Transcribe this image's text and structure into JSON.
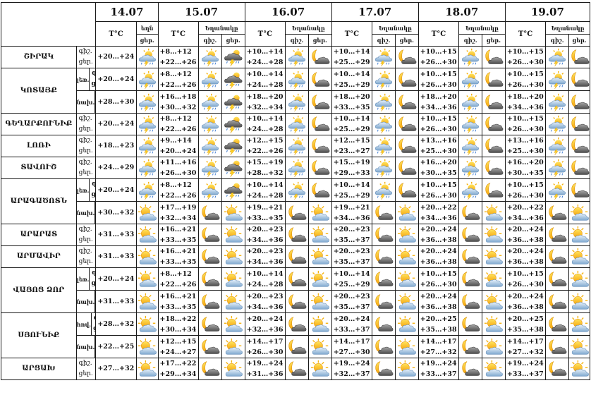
{
  "dates": [
    "14.07",
    "15.07",
    "16.07",
    "17.07",
    "18.07",
    "19.07"
  ],
  "header": {
    "temp": "T°C",
    "weather": "Եղանակը",
    "weather_short": "եղն",
    "night": "գիշ.",
    "day": "ցեր.",
    "day_first": "ցեր."
  },
  "regions": [
    {
      "name": "ՇԻՐԱԿ",
      "sub": "",
      "first": true,
      "lbl": [
        "գիշ.",
        "ցեր."
      ],
      "t": [
        "+20…+24",
        "+8…+12\n+22…+26",
        "+10…+14\n+24…+28",
        "+10…+14\n+25…+29",
        "+10…+15\n+26…+30",
        "+10…+15\n+26…+30"
      ],
      "ic": [
        "sun-storm-cloud",
        "sun-storm-cloud",
        "storm-cloud",
        "sun-storm-cloud",
        "moon-cloud",
        "sun-storm-cloud",
        "moon-cloud",
        "sun-storm-cloud",
        "moon-cloud",
        "sun-storm-cloud",
        "moon-cloud",
        "sun-storm-cloud"
      ]
    },
    {
      "name": "ԿՈՏԱՅՔ",
      "sub": "լեռ.",
      "first": true,
      "lbl": [
        "գիշ.",
        "ցեր."
      ],
      "t": [
        "+20…+24",
        "+8…+12\n+22…+26",
        "+10…+14\n+24…+28",
        "+10…+14\n+25…+29",
        "+10…+15\n+26…+30",
        "+10…+15\n+26…+30"
      ],
      "ic": [
        "sun-storm-cloud",
        "sun-storm-cloud",
        "storm-cloud",
        "sun-storm-cloud",
        "moon-cloud",
        "sun-storm-cloud",
        "moon-cloud",
        "sun-storm-cloud",
        "moon-cloud",
        "sun-storm-cloud",
        "moon-cloud",
        "sun-storm-cloud"
      ]
    },
    {
      "name": "",
      "sub": "նախ.",
      "first": true,
      "lbl": [
        "գիշ.",
        "ցեր."
      ],
      "t": [
        "+28…+30",
        "+16…+18\n+30…+32",
        "+18…+20\n+32…+34",
        "+18…+20\n+33…+35",
        "+18…+20\n+34…+36",
        "+18…+20\n+34…+36"
      ],
      "ic": [
        "sun-storm-cloud",
        "sun-storm-cloud",
        "storm-cloud",
        "sun-storm-cloud",
        "moon-cloud",
        "sun-storm-cloud",
        "moon-cloud",
        "sun-storm-cloud",
        "moon-cloud",
        "sun-storm-cloud",
        "moon-cloud",
        "sun-storm-cloud"
      ]
    },
    {
      "name": "ԳԵՂԱՐՔՈՒՆԻՔ",
      "sub": "",
      "first": true,
      "lbl": [
        "գիշ.",
        "ցեր."
      ],
      "t": [
        "+20…+24",
        "+8…+12\n+22…+26",
        "+10…+14\n+24…+28",
        "+10…+14\n+25…+29",
        "+10…+15\n+26…+30",
        "+10…+15\n+26…+30"
      ],
      "ic": [
        "sun-storm-cloud",
        "sun-storm-cloud",
        "storm-cloud",
        "sun-storm-cloud",
        "moon-cloud",
        "sun-storm-cloud",
        "moon-cloud",
        "sun-storm-cloud",
        "moon-cloud",
        "sun-storm-cloud",
        "moon-cloud",
        "sun-storm-cloud"
      ]
    },
    {
      "name": "ԼՈՌԻ",
      "sub": "",
      "first": true,
      "lbl": [
        "գիշ.",
        "ցեր."
      ],
      "t": [
        "+18…+23",
        "+9…+14\n+20…+24",
        "+12…+15\n+22…+26",
        "+12…+15\n+23…+27",
        "+13…+16\n+25…+30",
        "+13…+16\n+25…+30"
      ],
      "ic": [
        "sun-storm-cloud",
        "sun-storm-cloud",
        "storm-cloud",
        "sun-storm-cloud",
        "moon-cloud",
        "sun-storm-cloud",
        "moon-cloud",
        "sun-storm-cloud",
        "moon-cloud",
        "sun-storm-cloud",
        "moon-cloud",
        "sun-storm-cloud"
      ]
    },
    {
      "name": "ՏԱՎՈՒՇ",
      "sub": "",
      "first": true,
      "lbl": [
        "գիշ.",
        "ցեր."
      ],
      "t": [
        "+24…+29",
        "+11…+16\n+26…+30",
        "+15…+19\n+28…+32",
        "+15…+19\n+29…+33",
        "+16…+20\n+30…+35",
        "+16…+20\n+30…+35"
      ],
      "ic": [
        "sun-storm-cloud",
        "sun-storm-cloud",
        "storm-cloud",
        "sun-storm-cloud",
        "moon-cloud",
        "sun-storm-cloud",
        "moon-cloud",
        "sun-storm-cloud",
        "moon-cloud",
        "sun-storm-cloud",
        "moon-cloud",
        "sun-storm-cloud"
      ]
    },
    {
      "name": "ԱՐԱԳԱԾՈՏՆ",
      "sub": "լեռ.",
      "first": true,
      "lbl": [
        "գիշ.",
        "ցեր."
      ],
      "t": [
        "+20…+24",
        "+8…+12\n+22…+26",
        "+10…+14\n+24…+28",
        "+10…+14\n+25…+29",
        "+10…+15\n+26…+30",
        "+10…+15\n+26…+30"
      ],
      "ic": [
        "sun-storm-cloud",
        "sun-storm-cloud",
        "storm-cloud",
        "sun-storm-cloud",
        "moon-cloud",
        "sun-storm-cloud",
        "moon-cloud",
        "sun-storm-cloud",
        "moon-cloud",
        "sun-storm-cloud",
        "moon-cloud",
        "sun-storm-cloud"
      ]
    },
    {
      "name": "",
      "sub": "նախ.",
      "first": false,
      "lbl": [
        "գիշ.",
        "ցեր."
      ],
      "t": [
        "+30…+32",
        "+17…+19\n+32…+34",
        "+19…+21\n+33…+35",
        "+19…+21\n+34…+36",
        "+20…+22\n+34…+36",
        "+20…+22\n+34…+36"
      ],
      "ic": [
        "sun-cloud",
        "moon-cloud",
        "sun-cloud",
        "moon-cloud",
        "sun-cloud",
        "moon-cloud",
        "sun-cloud",
        "moon-cloud",
        "sun-cloud",
        "moon-cloud",
        "sun-cloud"
      ]
    },
    {
      "name": "ԱՐԱՐԱՏ",
      "sub": "",
      "first": false,
      "lbl": [
        "գիշ.",
        "ցեր."
      ],
      "t": [
        "+31…+33",
        "+16…+21\n+33…+35",
        "+20…+23\n+34…+36",
        "+20…+23\n+35…+37",
        "+20…+24\n+36…+38",
        "+20…+24\n+36…+38"
      ],
      "ic": [
        "sun-cloud",
        "moon-cloud",
        "sun-cloud",
        "moon-cloud",
        "sun-cloud",
        "moon-cloud",
        "sun-cloud",
        "moon-cloud",
        "sun-cloud",
        "moon-cloud",
        "sun-cloud"
      ]
    },
    {
      "name": "ԱՐՄԱՎԻՐ",
      "sub": "",
      "first": false,
      "lbl": [
        "գիշ.",
        "ցեր."
      ],
      "t": [
        "+31…+33",
        "+16…+21\n+33…+35",
        "+20…+23\n+34…+36",
        "+20…+23\n+35…+37",
        "+20…+24\n+36…+38",
        "+20…+24\n+36…+38"
      ],
      "ic": [
        "sun-cloud",
        "moon-cloud",
        "sun-cloud",
        "moon-cloud",
        "sun-cloud",
        "moon-cloud",
        "sun-cloud",
        "moon-cloud",
        "sun-cloud",
        "moon-cloud",
        "sun-cloud"
      ]
    },
    {
      "name": "ՎԱՅՈՑ ՁՈՐ",
      "sub": "լեռ.",
      "first": false,
      "lbl": [
        "գիշ.",
        "ցեր."
      ],
      "t": [
        "+20…+24",
        "+8…+12\n+22…+26",
        "+10…+14\n+24…+28",
        "+10…+14\n+25…+29",
        "+10…+15\n+26…+30",
        "+10…+15\n+26…+30"
      ],
      "ic": [
        "sun-cloud",
        "moon-cloud",
        "sun-cloud",
        "moon-cloud",
        "sun-cloud",
        "moon-cloud",
        "sun-cloud",
        "moon-cloud",
        "sun-cloud",
        "moon-cloud",
        "sun-cloud"
      ]
    },
    {
      "name": "",
      "sub": "նախ.",
      "first": false,
      "lbl": [
        "գիշ.",
        "ցեր."
      ],
      "t": [
        "+31…+33",
        "+16…+21\n+33…+35",
        "+20…+23\n+34…+36",
        "+20…+23\n+35…+37",
        "+20…+24\n+36…+38",
        "+20…+24\n+36…+38"
      ],
      "ic": [
        "sun-cloud",
        "moon-cloud",
        "sun-cloud",
        "moon-cloud",
        "sun-cloud",
        "moon-cloud",
        "sun-cloud",
        "moon-cloud",
        "sun-cloud",
        "moon-cloud",
        "sun-cloud"
      ]
    },
    {
      "name": "ՍՅՈՒՆԻՔ",
      "sub": "հով.",
      "first": false,
      "lbl": [
        "գիշ.",
        "ցեր."
      ],
      "t": [
        "+28…+32",
        "+18…+22\n+30…+34",
        "+20…+24\n+32…+36",
        "+20…+24\n+33…+37",
        "+20…+25\n+35…+38",
        "+20…+25\n+35…+38"
      ],
      "ic": [
        "sun-cloud",
        "moon-cloud",
        "sun-cloud",
        "moon-cloud",
        "sun-cloud",
        "moon-cloud",
        "sun-cloud",
        "moon-cloud",
        "sun-cloud",
        "moon-cloud",
        "sun-cloud"
      ]
    },
    {
      "name": "",
      "sub": "նախ.",
      "first": false,
      "lbl": [
        "գիշ.",
        "ցեր."
      ],
      "t": [
        "+22…+25",
        "+12…+15\n+24…+27",
        "+14…+17\n+26…+30",
        "+14…+17\n+27…+30",
        "+14…+17\n+27…+32",
        "+14…+17\n+27…+32"
      ],
      "ic": [
        "sun-cloud",
        "moon-cloud",
        "sun-cloud",
        "moon-cloud",
        "sun-cloud",
        "moon-cloud",
        "sun-cloud",
        "moon-cloud",
        "sun-cloud",
        "moon-cloud",
        "sun-cloud"
      ]
    },
    {
      "name": "ԱՐՑԱԽ",
      "sub": "",
      "first": false,
      "lbl": [
        "գիշ.",
        "ցեր."
      ],
      "t": [
        "+27…+32",
        "+17…+22\n+29…+34",
        "+19…+24\n+31…+36",
        "+19…+24\n+32…+37",
        "+19…+24\n+33…+37",
        "+19…+24\n+33…+37"
      ],
      "ic": [
        "sun-cloud",
        "moon-cloud",
        "sun-cloud",
        "moon-cloud",
        "sun-cloud",
        "moon-cloud",
        "sun-cloud",
        "moon-cloud",
        "sun-cloud",
        "moon-cloud",
        "sun-cloud"
      ]
    }
  ]
}
